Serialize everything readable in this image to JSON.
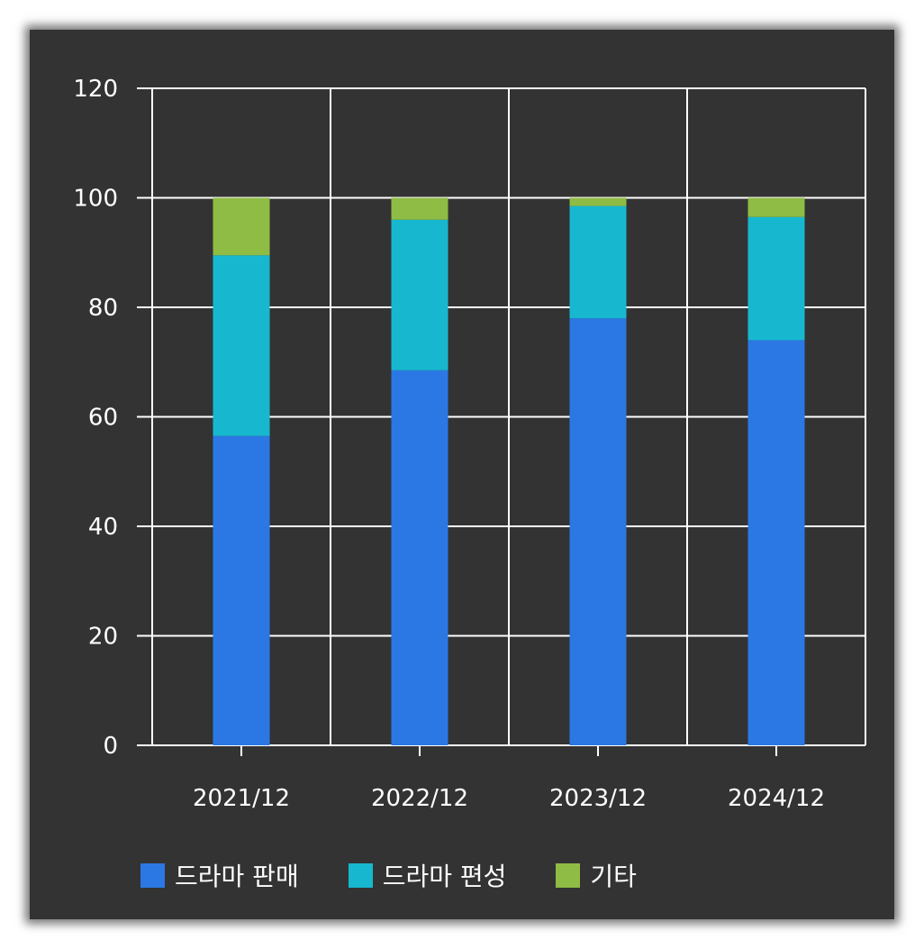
{
  "chart_data": {
    "type": "bar",
    "stacked": true,
    "categories": [
      "2021/12",
      "2022/12",
      "2023/12",
      "2024/12"
    ],
    "series": [
      {
        "name": "드라마 판매",
        "color": "#2b78e4",
        "values": [
          56.5,
          68.5,
          78.0,
          74.0
        ]
      },
      {
        "name": "드라마 편성",
        "color": "#17b8cf",
        "values": [
          33.0,
          27.5,
          20.5,
          22.5
        ]
      },
      {
        "name": "기타",
        "color": "#8fbc44",
        "values": [
          10.5,
          4.0,
          1.5,
          3.5
        ]
      }
    ],
    "yticks": [
      "0",
      "20",
      "40",
      "60",
      "80",
      "100",
      "120"
    ],
    "ylim": [
      0,
      120
    ],
    "grid": true,
    "legend_position": "bottom",
    "title": "",
    "xlabel": "",
    "ylabel": ""
  },
  "colors": {
    "background": "#333333",
    "grid": "#ffffff",
    "text": "#ffffff"
  }
}
